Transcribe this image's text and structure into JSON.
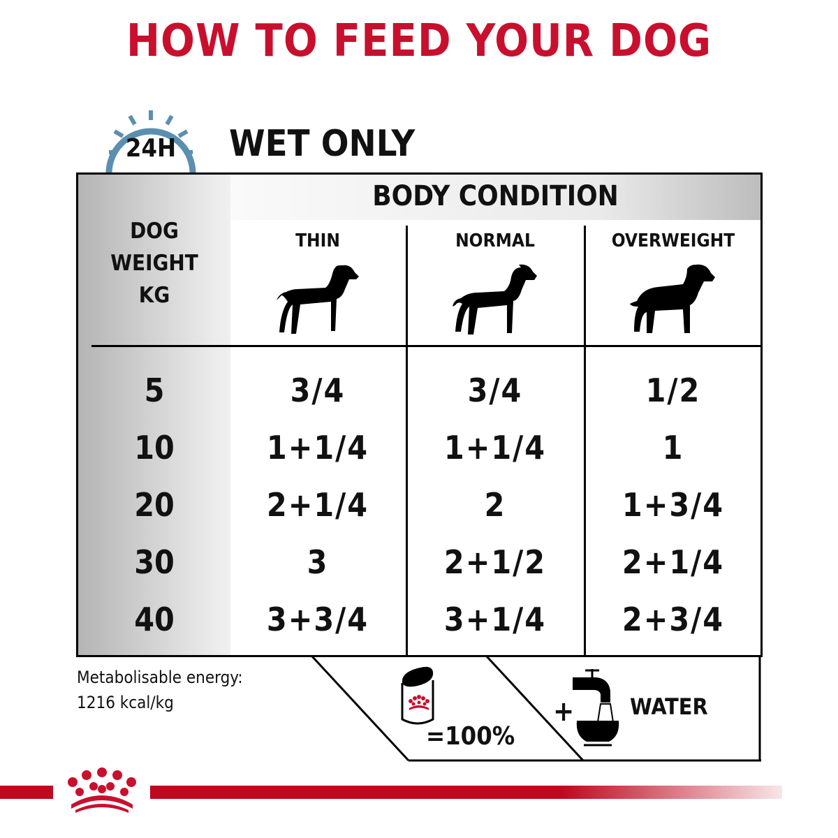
{
  "title": "HOW TO FEED YOUR DOG",
  "clock": {
    "label": "24H",
    "icon": "clock-icon",
    "color": "#5b8fb0"
  },
  "section_title": "WET ONLY",
  "table": {
    "band_header": "BODY CONDITION",
    "weight_header": [
      "DOG",
      "WEIGHT",
      "KG"
    ],
    "columns": [
      {
        "label": "THIN",
        "icon": "thin-dog-icon"
      },
      {
        "label": "NORMAL",
        "icon": "normal-dog-icon"
      },
      {
        "label": "OVERWEIGHT",
        "icon": "overweight-dog-icon"
      }
    ],
    "rows": [
      {
        "weight": "5",
        "values": [
          "3/4",
          "3/4",
          "1/2"
        ]
      },
      {
        "weight": "10",
        "values": [
          "1+1/4",
          "1+1/4",
          "1"
        ]
      },
      {
        "weight": "20",
        "values": [
          "2+1/4",
          "2",
          "1+3/4"
        ]
      },
      {
        "weight": "30",
        "values": [
          "3",
          "2+1/2",
          "2+1/4"
        ]
      },
      {
        "weight": "40",
        "values": [
          "3+3/4",
          "3+1/4",
          "2+3/4"
        ]
      }
    ]
  },
  "footer": {
    "energy_line1": "Metabolisable energy:",
    "energy_line2": "1216 kcal/kg",
    "can_label": "=100%",
    "plus": "+",
    "water_label": "WATER"
  },
  "brand_color": "#c8102e"
}
